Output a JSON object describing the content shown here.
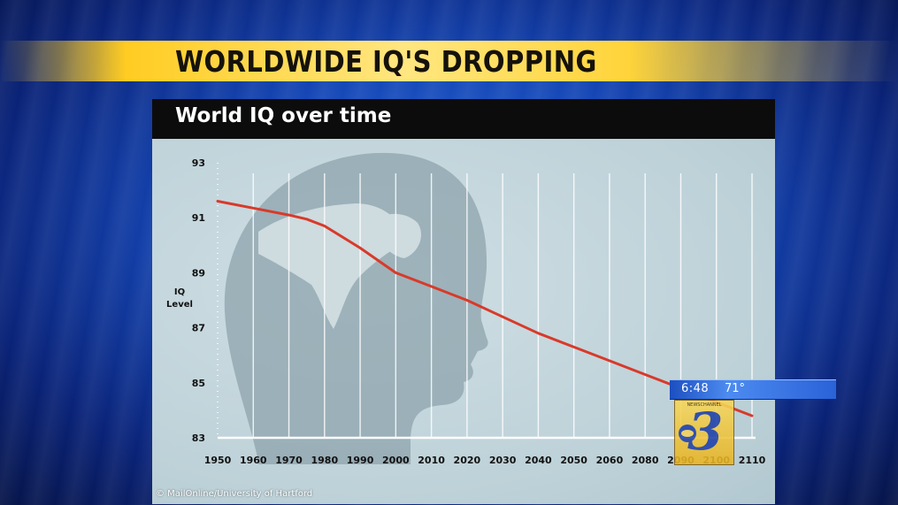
{
  "banner": {
    "headline": "WORLDWIDE IQ'S DROPPING"
  },
  "chart_data": {
    "type": "line",
    "title": "World IQ over time",
    "xlabel": "",
    "ylabel": "IQ\nLevel",
    "x_ticks": [
      1950,
      1960,
      1970,
      1980,
      1990,
      2000,
      2010,
      2020,
      2030,
      2040,
      2050,
      2060,
      2080,
      2090,
      2100,
      2110
    ],
    "y_ticks": [
      83,
      85,
      87,
      89,
      91,
      93
    ],
    "ylim": [
      83,
      93
    ],
    "grid": "vertical",
    "series": [
      {
        "color": "#d83a2a",
        "x": [
          1950,
          1960,
          1970,
          1975,
          1980,
          1990,
          2000,
          2010,
          2020,
          2030,
          2040,
          2050,
          2060,
          2080,
          2090,
          2100,
          2110
        ],
        "y": [
          91.6,
          91.35,
          91.1,
          90.95,
          90.7,
          89.9,
          89.0,
          88.5,
          88.0,
          87.4,
          86.8,
          86.3,
          85.8,
          85.3,
          84.8,
          84.3,
          83.8
        ]
      }
    ],
    "background_image": "human-head-silhouette-with-world-map",
    "credit": "© MailOnline/University of Hartford"
  },
  "station": {
    "time": "6:48",
    "temperature": "71°",
    "logo_number": "3",
    "logo_caption": "NEWSCHANNEL",
    "network_icon": "cbs-eye-icon"
  },
  "colors": {
    "line": "#d83a2a",
    "banner": "#ffd43a",
    "title_bar": "#0c0c0c",
    "chart_bg": "#c5d7de",
    "background": "#1547b6"
  }
}
